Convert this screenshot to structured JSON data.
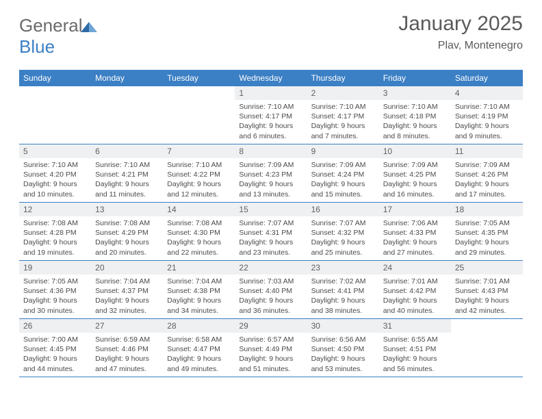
{
  "logo": {
    "part1": "General",
    "part2": "Blue"
  },
  "header": {
    "title": "January 2025",
    "subtitle": "Plav, Montenegro"
  },
  "colors": {
    "header_bg": "#3b7fc4",
    "daynum_bg": "#eef0f2",
    "text": "#4a4a4a",
    "border": "#3b7fc4"
  },
  "day_names": [
    "Sunday",
    "Monday",
    "Tuesday",
    "Wednesday",
    "Thursday",
    "Friday",
    "Saturday"
  ],
  "weeks": [
    [
      {
        "n": "",
        "sunrise": "",
        "sunset": "",
        "dl": ""
      },
      {
        "n": "",
        "sunrise": "",
        "sunset": "",
        "dl": ""
      },
      {
        "n": "",
        "sunrise": "",
        "sunset": "",
        "dl": ""
      },
      {
        "n": "1",
        "sunrise": "Sunrise: 7:10 AM",
        "sunset": "Sunset: 4:17 PM",
        "dl": "Daylight: 9 hours and 6 minutes."
      },
      {
        "n": "2",
        "sunrise": "Sunrise: 7:10 AM",
        "sunset": "Sunset: 4:17 PM",
        "dl": "Daylight: 9 hours and 7 minutes."
      },
      {
        "n": "3",
        "sunrise": "Sunrise: 7:10 AM",
        "sunset": "Sunset: 4:18 PM",
        "dl": "Daylight: 9 hours and 8 minutes."
      },
      {
        "n": "4",
        "sunrise": "Sunrise: 7:10 AM",
        "sunset": "Sunset: 4:19 PM",
        "dl": "Daylight: 9 hours and 9 minutes."
      }
    ],
    [
      {
        "n": "5",
        "sunrise": "Sunrise: 7:10 AM",
        "sunset": "Sunset: 4:20 PM",
        "dl": "Daylight: 9 hours and 10 minutes."
      },
      {
        "n": "6",
        "sunrise": "Sunrise: 7:10 AM",
        "sunset": "Sunset: 4:21 PM",
        "dl": "Daylight: 9 hours and 11 minutes."
      },
      {
        "n": "7",
        "sunrise": "Sunrise: 7:10 AM",
        "sunset": "Sunset: 4:22 PM",
        "dl": "Daylight: 9 hours and 12 minutes."
      },
      {
        "n": "8",
        "sunrise": "Sunrise: 7:09 AM",
        "sunset": "Sunset: 4:23 PM",
        "dl": "Daylight: 9 hours and 13 minutes."
      },
      {
        "n": "9",
        "sunrise": "Sunrise: 7:09 AM",
        "sunset": "Sunset: 4:24 PM",
        "dl": "Daylight: 9 hours and 15 minutes."
      },
      {
        "n": "10",
        "sunrise": "Sunrise: 7:09 AM",
        "sunset": "Sunset: 4:25 PM",
        "dl": "Daylight: 9 hours and 16 minutes."
      },
      {
        "n": "11",
        "sunrise": "Sunrise: 7:09 AM",
        "sunset": "Sunset: 4:26 PM",
        "dl": "Daylight: 9 hours and 17 minutes."
      }
    ],
    [
      {
        "n": "12",
        "sunrise": "Sunrise: 7:08 AM",
        "sunset": "Sunset: 4:28 PM",
        "dl": "Daylight: 9 hours and 19 minutes."
      },
      {
        "n": "13",
        "sunrise": "Sunrise: 7:08 AM",
        "sunset": "Sunset: 4:29 PM",
        "dl": "Daylight: 9 hours and 20 minutes."
      },
      {
        "n": "14",
        "sunrise": "Sunrise: 7:08 AM",
        "sunset": "Sunset: 4:30 PM",
        "dl": "Daylight: 9 hours and 22 minutes."
      },
      {
        "n": "15",
        "sunrise": "Sunrise: 7:07 AM",
        "sunset": "Sunset: 4:31 PM",
        "dl": "Daylight: 9 hours and 23 minutes."
      },
      {
        "n": "16",
        "sunrise": "Sunrise: 7:07 AM",
        "sunset": "Sunset: 4:32 PM",
        "dl": "Daylight: 9 hours and 25 minutes."
      },
      {
        "n": "17",
        "sunrise": "Sunrise: 7:06 AM",
        "sunset": "Sunset: 4:33 PM",
        "dl": "Daylight: 9 hours and 27 minutes."
      },
      {
        "n": "18",
        "sunrise": "Sunrise: 7:05 AM",
        "sunset": "Sunset: 4:35 PM",
        "dl": "Daylight: 9 hours and 29 minutes."
      }
    ],
    [
      {
        "n": "19",
        "sunrise": "Sunrise: 7:05 AM",
        "sunset": "Sunset: 4:36 PM",
        "dl": "Daylight: 9 hours and 30 minutes."
      },
      {
        "n": "20",
        "sunrise": "Sunrise: 7:04 AM",
        "sunset": "Sunset: 4:37 PM",
        "dl": "Daylight: 9 hours and 32 minutes."
      },
      {
        "n": "21",
        "sunrise": "Sunrise: 7:04 AM",
        "sunset": "Sunset: 4:38 PM",
        "dl": "Daylight: 9 hours and 34 minutes."
      },
      {
        "n": "22",
        "sunrise": "Sunrise: 7:03 AM",
        "sunset": "Sunset: 4:40 PM",
        "dl": "Daylight: 9 hours and 36 minutes."
      },
      {
        "n": "23",
        "sunrise": "Sunrise: 7:02 AM",
        "sunset": "Sunset: 4:41 PM",
        "dl": "Daylight: 9 hours and 38 minutes."
      },
      {
        "n": "24",
        "sunrise": "Sunrise: 7:01 AM",
        "sunset": "Sunset: 4:42 PM",
        "dl": "Daylight: 9 hours and 40 minutes."
      },
      {
        "n": "25",
        "sunrise": "Sunrise: 7:01 AM",
        "sunset": "Sunset: 4:43 PM",
        "dl": "Daylight: 9 hours and 42 minutes."
      }
    ],
    [
      {
        "n": "26",
        "sunrise": "Sunrise: 7:00 AM",
        "sunset": "Sunset: 4:45 PM",
        "dl": "Daylight: 9 hours and 44 minutes."
      },
      {
        "n": "27",
        "sunrise": "Sunrise: 6:59 AM",
        "sunset": "Sunset: 4:46 PM",
        "dl": "Daylight: 9 hours and 47 minutes."
      },
      {
        "n": "28",
        "sunrise": "Sunrise: 6:58 AM",
        "sunset": "Sunset: 4:47 PM",
        "dl": "Daylight: 9 hours and 49 minutes."
      },
      {
        "n": "29",
        "sunrise": "Sunrise: 6:57 AM",
        "sunset": "Sunset: 4:49 PM",
        "dl": "Daylight: 9 hours and 51 minutes."
      },
      {
        "n": "30",
        "sunrise": "Sunrise: 6:56 AM",
        "sunset": "Sunset: 4:50 PM",
        "dl": "Daylight: 9 hours and 53 minutes."
      },
      {
        "n": "31",
        "sunrise": "Sunrise: 6:55 AM",
        "sunset": "Sunset: 4:51 PM",
        "dl": "Daylight: 9 hours and 56 minutes."
      },
      {
        "n": "",
        "sunrise": "",
        "sunset": "",
        "dl": ""
      }
    ]
  ]
}
